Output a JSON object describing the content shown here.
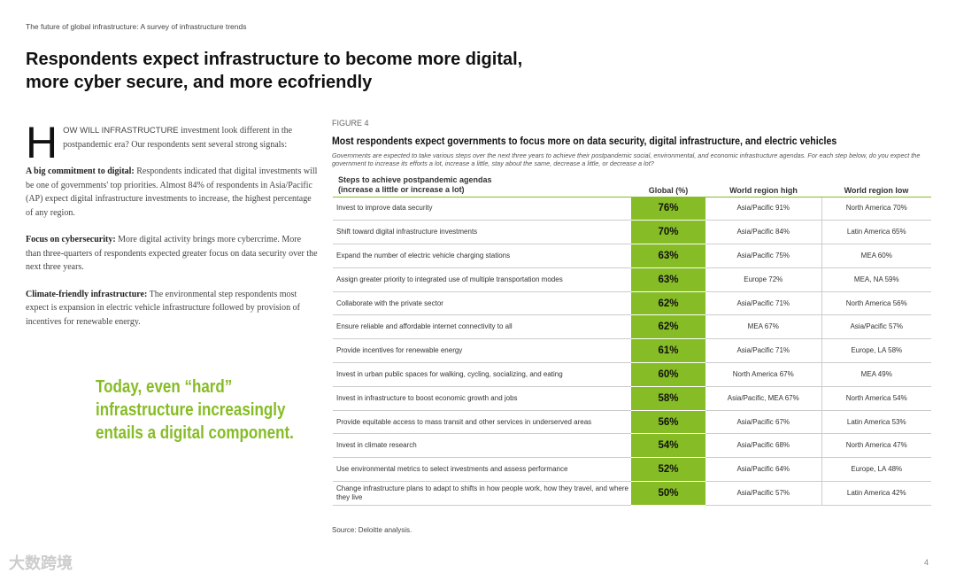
{
  "running_head": "The future of global infrastructure: A survey of infrastructure trends",
  "title_line1": "Respondents expect infrastructure to become more digital,",
  "title_line2": "more cyber secure, and more ecofriendly",
  "intro": {
    "drop": "H",
    "caps": "OW WILL INFRASTRUCTURE",
    "rest": " investment look different in the postpandemic era? Our respondents sent several strong signals:"
  },
  "paragraphs": [
    {
      "lead": "A big commitment to digital:",
      "text": " Respondents indicated that digital investments will be one of governments' top priorities. Almost 84% of respondents in Asia/Pacific (AP) expect digital infrastructure investments to increase, the highest percentage of any region."
    },
    {
      "lead": "Focus on cybersecurity:",
      "text": " More digital activity brings more cybercrime. More than three-quarters of respondents expected greater focus on data security over the next three years."
    },
    {
      "lead": "Climate-friendly infrastructure:",
      "text": " The environmental step respondents most expect is expansion in electric vehicle infrastructure followed by provision of incentives for renewable energy."
    }
  ],
  "quote": [
    "Today, even “hard”",
    "infrastructure increasingly",
    "entails a digital component."
  ],
  "figure": {
    "label": "FIGURE 4",
    "title": "Most respondents expect governments to focus more on data security, digital infrastructure, and electric vehicles",
    "subtitle": "Governments are expected to take various steps over the next three years to achieve their postpandemic social, environmental, and economic infrastructure agendas. For each step below, do you expect the government to increase its efforts a lot, increase a little, stay about the same, decrease a little, or decrease a lot?",
    "headers": {
      "step1": "Steps to achieve postpandemic agendas",
      "step2": "(increase a little or increase a lot)",
      "global": "Global (%)",
      "high": "World region high",
      "low": "World region low"
    },
    "rows": [
      [
        "Invest to improve data security",
        "76%",
        "Asia/Pacific 91%",
        "North America 70%"
      ],
      [
        "Shift toward digital infrastructure investments",
        "70%",
        "Asia/Pacific 84%",
        "Latin America 65%"
      ],
      [
        "Expand the number of electric vehicle charging stations",
        "63%",
        "Asia/Pacific 75%",
        "MEA 60%"
      ],
      [
        "Assign greater priority to integrated use of multiple transportation modes",
        "63%",
        "Europe 72%",
        "MEA, NA 59%"
      ],
      [
        "Collaborate with the private sector",
        "62%",
        "Asia/Pacific 71%",
        "North America 56%"
      ],
      [
        "Ensure reliable and affordable internet connectivity to all",
        "62%",
        "MEA 67%",
        "Asia/Pacific 57%"
      ],
      [
        "Provide incentives for renewable energy",
        "61%",
        "Asia/Pacific 71%",
        "Europe, LA 58%"
      ],
      [
        "Invest in urban public spaces for walking, cycling, socializing, and eating",
        "60%",
        "North America 67%",
        "MEA 49%"
      ],
      [
        "Invest in infrastructure to boost economic growth and jobs",
        "58%",
        "Asia/Pacific, MEA 67%",
        "North America 54%"
      ],
      [
        "Provide equitable access to mass transit and other services in underserved areas",
        "56%",
        "Asia/Pacific 67%",
        "Latin America 53%"
      ],
      [
        "Invest in climate research",
        "54%",
        "Asia/Pacific 68%",
        "North America 47%"
      ],
      [
        "Use environmental metrics to select investments and assess performance",
        "52%",
        "Asia/Pacific 64%",
        "Europe, LA 48%"
      ],
      [
        "Change infrastructure plans to adapt to shifts in how people work, how they travel, and where they live",
        "50%",
        "Asia/Pacific 57%",
        "Latin America 42%"
      ]
    ],
    "source": "Source: Deloitte analysis."
  },
  "page_number": "4",
  "watermark": "大数跨境"
}
